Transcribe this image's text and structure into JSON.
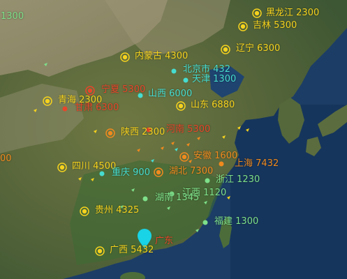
{
  "map": {
    "colors": {
      "yellow": "#f5d21e",
      "orange": "#f08a1e",
      "red": "#e8462a",
      "cyan": "#46dcd0",
      "green": "#7ee08a",
      "ocean": "#1c3d66",
      "land": "#5d6b3e"
    },
    "edge_labels": {
      "top_left_value": "1300",
      "left_value": "00"
    },
    "provinces": [
      {
        "name": "黑龙江",
        "value": "2300"
      },
      {
        "name": "吉林",
        "value": "5300"
      },
      {
        "name": "辽宁",
        "value": "6300"
      },
      {
        "name": "内蒙古",
        "value": "4300"
      },
      {
        "name": "北京市",
        "value": "432"
      },
      {
        "name": "天津",
        "value": "1300"
      },
      {
        "name": "宁夏",
        "value": "5300"
      },
      {
        "name": "山西",
        "value": "6000"
      },
      {
        "name": "青海",
        "value": "2300"
      },
      {
        "name": "甘肃",
        "value": "6300"
      },
      {
        "name": "山东",
        "value": "6880"
      },
      {
        "name": "陕西",
        "value": "2300"
      },
      {
        "name": "河南",
        "value": "5300"
      },
      {
        "name": "安徽",
        "value": "1600"
      },
      {
        "name": "四川",
        "value": "4500"
      },
      {
        "name": "重庆",
        "value": "900"
      },
      {
        "name": "湖北",
        "value": "7300"
      },
      {
        "name": "上海",
        "value": "7432"
      },
      {
        "name": "浙江",
        "value": "1230"
      },
      {
        "name": "江西",
        "value": "1120"
      },
      {
        "name": "湖南",
        "value": "1345"
      },
      {
        "name": "贵州",
        "value": "4325"
      },
      {
        "name": "福建",
        "value": "1300"
      },
      {
        "name": "广西",
        "value": "5432"
      },
      {
        "name": "广东",
        "value": ""
      }
    ]
  }
}
